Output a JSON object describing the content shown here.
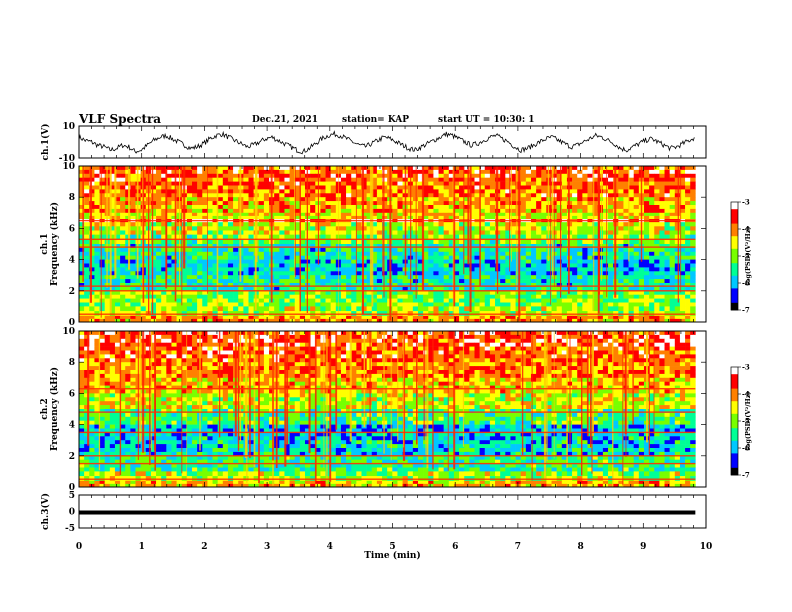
{
  "header": {
    "title": "VLF Spectra",
    "date": "Dec.21, 2021",
    "station": "station= KAP",
    "start_ut": "start UT = 10:30: 1"
  },
  "chart_data": [
    {
      "type": "line",
      "name": "ch1-waveform",
      "ylabel": "ch.1(V)",
      "ylim": [
        -10,
        10
      ],
      "yticks": [
        "10",
        "-10"
      ],
      "xlim": [
        0,
        10
      ],
      "x_extent": [
        0,
        9.83
      ],
      "values": [
        3,
        1,
        0,
        -2,
        -3,
        -5,
        -4,
        -2,
        -3,
        -6,
        -5,
        -2,
        1,
        3,
        4,
        2,
        0,
        -2,
        -4,
        -3,
        -1,
        2,
        4,
        5,
        3,
        1,
        -1,
        -3,
        -2,
        0,
        2,
        3,
        1,
        -1,
        -3,
        -5,
        -6,
        -4,
        -1,
        2,
        4,
        5,
        4,
        2,
        0,
        -2,
        -3,
        -1,
        1,
        3,
        2,
        0,
        -2,
        -4,
        -5,
        -3,
        -1,
        1,
        3,
        5,
        4,
        2,
        0,
        -2,
        -1,
        1,
        3,
        4,
        2,
        0,
        -3,
        -5,
        -4,
        -2,
        0,
        2,
        3,
        1,
        -1,
        -3,
        -2,
        0,
        2,
        4,
        3,
        1,
        -1,
        -4,
        -5,
        -3,
        -1,
        1,
        2,
        0,
        -2,
        -4,
        -3,
        -1,
        1,
        3
      ]
    },
    {
      "type": "heatmap",
      "name": "ch1-spectrogram",
      "ylabel": "ch.1 Frequency (kHz)",
      "ylim": [
        0,
        10
      ],
      "yticks": [
        "0",
        "2",
        "4",
        "6",
        "8",
        "10"
      ],
      "xlim": [
        0,
        10
      ],
      "x_extent": [
        0,
        9.83
      ],
      "zlim": [
        -7,
        -3
      ],
      "colorbar_label": "log(PSD)(V²/Hz)",
      "colorbar_ticks": [
        "-3",
        "-4",
        "-5",
        "-6",
        "-7"
      ],
      "colormap": [
        "#000000",
        "#0000ff",
        "#00c8ff",
        "#00ff96",
        "#78ff00",
        "#ffff00",
        "#ff8000",
        "#ff0000",
        "#ffffff"
      ],
      "bands_khz": [
        [
          10.0,
          9.0,
          -3.7
        ],
        [
          9.0,
          8.0,
          -3.9
        ],
        [
          8.0,
          7.0,
          -4.2
        ],
        [
          7.0,
          6.6,
          -4.5
        ],
        [
          6.6,
          6.4,
          -3.4
        ],
        [
          6.4,
          5.6,
          -4.7
        ],
        [
          5.6,
          5.0,
          -5.1
        ],
        [
          5.0,
          4.0,
          -5.6
        ],
        [
          4.0,
          3.0,
          -5.9
        ],
        [
          3.0,
          2.0,
          -5.6
        ],
        [
          2.0,
          1.0,
          -5.0
        ],
        [
          1.0,
          0.4,
          -4.8
        ],
        [
          0.4,
          0.0,
          -4.1
        ]
      ],
      "lines_khz": [
        6.5,
        5.3,
        4.8,
        2.3,
        2.0,
        0.5
      ]
    },
    {
      "type": "heatmap",
      "name": "ch2-spectrogram",
      "ylabel": "ch.2 Frequency (kHz)",
      "ylim": [
        0,
        10
      ],
      "yticks": [
        "0",
        "2",
        "4",
        "6",
        "8",
        "10"
      ],
      "xlim": [
        0,
        10
      ],
      "x_extent": [
        0,
        9.83
      ],
      "zlim": [
        -7,
        -3
      ],
      "colorbar_label": "log(PSD)(V²/Hz)",
      "colorbar_ticks": [
        "-3",
        "-4",
        "-5",
        "-6",
        "-7"
      ],
      "colormap": [
        "#000000",
        "#0000ff",
        "#00c8ff",
        "#00ff96",
        "#78ff00",
        "#ffff00",
        "#ff8000",
        "#ff0000",
        "#ffffff"
      ],
      "bands_khz": [
        [
          10.0,
          9.0,
          -3.6
        ],
        [
          9.0,
          8.0,
          -3.8
        ],
        [
          8.0,
          7.0,
          -4.0
        ],
        [
          7.0,
          6.0,
          -4.3
        ],
        [
          6.0,
          5.0,
          -4.7
        ],
        [
          5.0,
          4.0,
          -5.3
        ],
        [
          4.0,
          3.0,
          -5.9
        ],
        [
          3.0,
          2.0,
          -5.8
        ],
        [
          2.0,
          1.0,
          -5.4
        ],
        [
          1.0,
          0.4,
          -4.9
        ],
        [
          0.4,
          0.0,
          -4.3
        ]
      ],
      "lines_khz": [
        6.3,
        4.8,
        3.5,
        2.0,
        1.5,
        0.5
      ]
    },
    {
      "type": "line",
      "name": "ch3-waveform",
      "ylabel": "ch.3(V)",
      "ylim": [
        -5,
        5
      ],
      "yticks": [
        "5",
        "0",
        "-5"
      ],
      "xlim": [
        0,
        10
      ],
      "x_extent": [
        0,
        9.83
      ],
      "values": [
        -0.3,
        0.3
      ]
    }
  ],
  "time_axis": {
    "label": "Time (min)",
    "ticks": [
      "0",
      "1",
      "2",
      "3",
      "4",
      "5",
      "6",
      "7",
      "8",
      "9",
      "10"
    ]
  }
}
